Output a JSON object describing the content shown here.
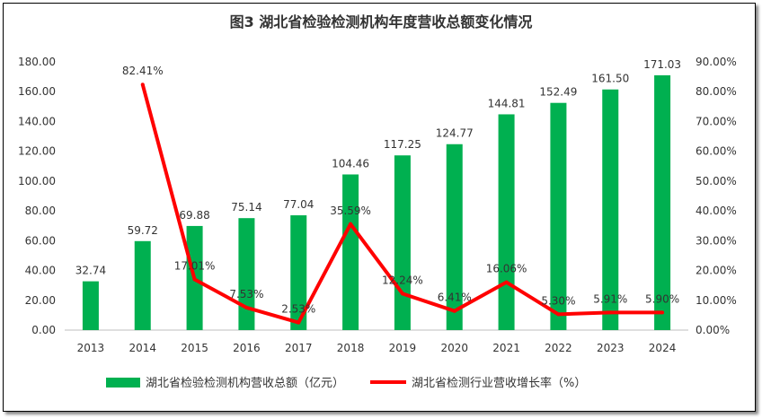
{
  "chart_data": {
    "type": "bar+line",
    "title": "图3 湖北省检验检测机构年度营收总额变化情况",
    "categories": [
      "2013",
      "2014",
      "2015",
      "2016",
      "2017",
      "2018",
      "2019",
      "2020",
      "2021",
      "2022",
      "2023",
      "2024"
    ],
    "series": [
      {
        "name": "湖北省检验检测机构营收总额（亿元）",
        "type": "bar",
        "axis": "left",
        "color": "#00B050",
        "values": [
          32.74,
          59.72,
          69.88,
          75.14,
          77.04,
          104.46,
          117.25,
          124.77,
          144.81,
          152.49,
          161.5,
          171.03
        ],
        "labels": [
          "32.74",
          "59.72",
          "69.88",
          "75.14",
          "77.04",
          "104.46",
          "117.25",
          "124.77",
          "144.81",
          "152.49",
          "161.50",
          "171.03"
        ]
      },
      {
        "name": "湖北省检测行业营收增长率（%）",
        "type": "line",
        "axis": "right",
        "color": "#FF0000",
        "values": [
          null,
          82.41,
          17.01,
          7.53,
          2.53,
          35.59,
          12.24,
          6.41,
          16.06,
          5.3,
          5.91,
          5.9
        ],
        "labels": [
          "",
          "82.41%",
          "17.01%",
          "7.53%",
          "2.53%",
          "35.59%",
          "12.24%",
          "6.41%",
          "16.06%",
          "5.30%",
          "5.91%",
          "5.90%"
        ]
      }
    ],
    "y_left": {
      "range": [
        0,
        180
      ],
      "ticks": [
        "0.00",
        "20.00",
        "40.00",
        "60.00",
        "80.00",
        "100.00",
        "120.00",
        "140.00",
        "160.00",
        "180.00"
      ]
    },
    "y_right": {
      "range": [
        0,
        90
      ],
      "ticks": [
        "0.00%",
        "10.00%",
        "20.00%",
        "30.00%",
        "40.00%",
        "50.00%",
        "60.00%",
        "70.00%",
        "80.00%",
        "90.00%"
      ]
    },
    "grid": false,
    "legend": "bottom"
  }
}
